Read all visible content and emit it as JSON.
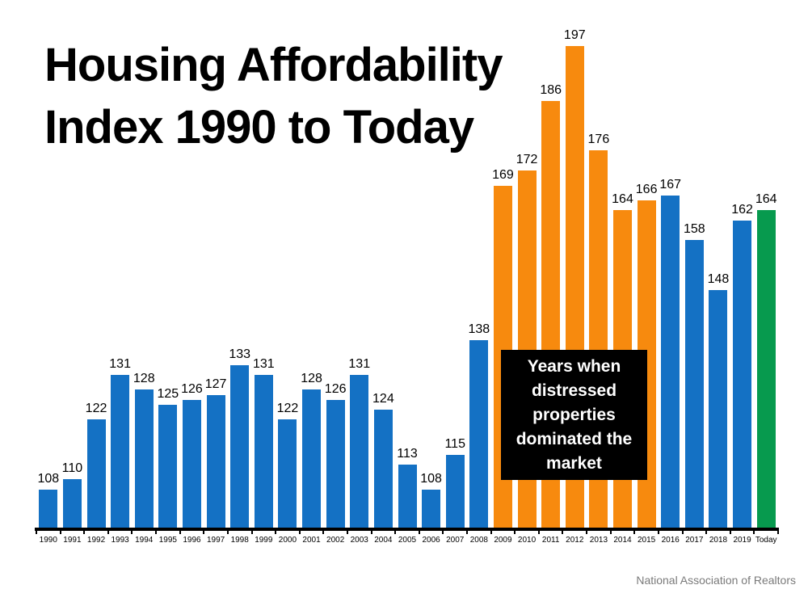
{
  "title": "Housing Affordability\nIndex 1990 to Today",
  "source": "National Association of Realtors",
  "annotation": {
    "lines": [
      "Years when",
      "distressed",
      "properties",
      "dominated the",
      "market"
    ],
    "bg": "#000000",
    "text_color": "#ffffff"
  },
  "colors": {
    "blue": "#1471c4",
    "orange": "#f78a0e",
    "green": "#079a4e",
    "axis": "#000000",
    "source_text": "#7a7a7a"
  },
  "chart_data": {
    "type": "bar",
    "title": "Housing Affordability Index 1990 to Today",
    "categories": [
      "1990",
      "1991",
      "1992",
      "1993",
      "1994",
      "1995",
      "1996",
      "1997",
      "1998",
      "1999",
      "2000",
      "2001",
      "2002",
      "2003",
      "2004",
      "2005",
      "2006",
      "2007",
      "2008",
      "2009",
      "2010",
      "2011",
      "2012",
      "2013",
      "2014",
      "2015",
      "2016",
      "2017",
      "2018",
      "2019",
      "Today"
    ],
    "values": [
      108,
      110,
      122,
      131,
      128,
      125,
      126,
      127,
      133,
      131,
      122,
      128,
      126,
      131,
      124,
      113,
      108,
      115,
      138,
      169,
      172,
      186,
      197,
      176,
      164,
      166,
      167,
      158,
      148,
      162,
      164
    ],
    "bar_colors": [
      "#1471c4",
      "#1471c4",
      "#1471c4",
      "#1471c4",
      "#1471c4",
      "#1471c4",
      "#1471c4",
      "#1471c4",
      "#1471c4",
      "#1471c4",
      "#1471c4",
      "#1471c4",
      "#1471c4",
      "#1471c4",
      "#1471c4",
      "#1471c4",
      "#1471c4",
      "#1471c4",
      "#1471c4",
      "#f78a0e",
      "#f78a0e",
      "#f78a0e",
      "#f78a0e",
      "#f78a0e",
      "#f78a0e",
      "#f78a0e",
      "#1471c4",
      "#1471c4",
      "#1471c4",
      "#1471c4",
      "#079a4e"
    ],
    "xlabel": "",
    "ylabel": "",
    "ylim": [
      100,
      200
    ],
    "grid": false,
    "legend": "none",
    "data_labels": true,
    "segments": [
      {
        "range": "1990-2008",
        "color": "#1471c4"
      },
      {
        "range": "2009-2015",
        "color": "#f78a0e",
        "note": "Years when distressed properties dominated the market"
      },
      {
        "range": "2016-2019",
        "color": "#1471c4"
      },
      {
        "range": "Today",
        "color": "#079a4e"
      }
    ]
  }
}
